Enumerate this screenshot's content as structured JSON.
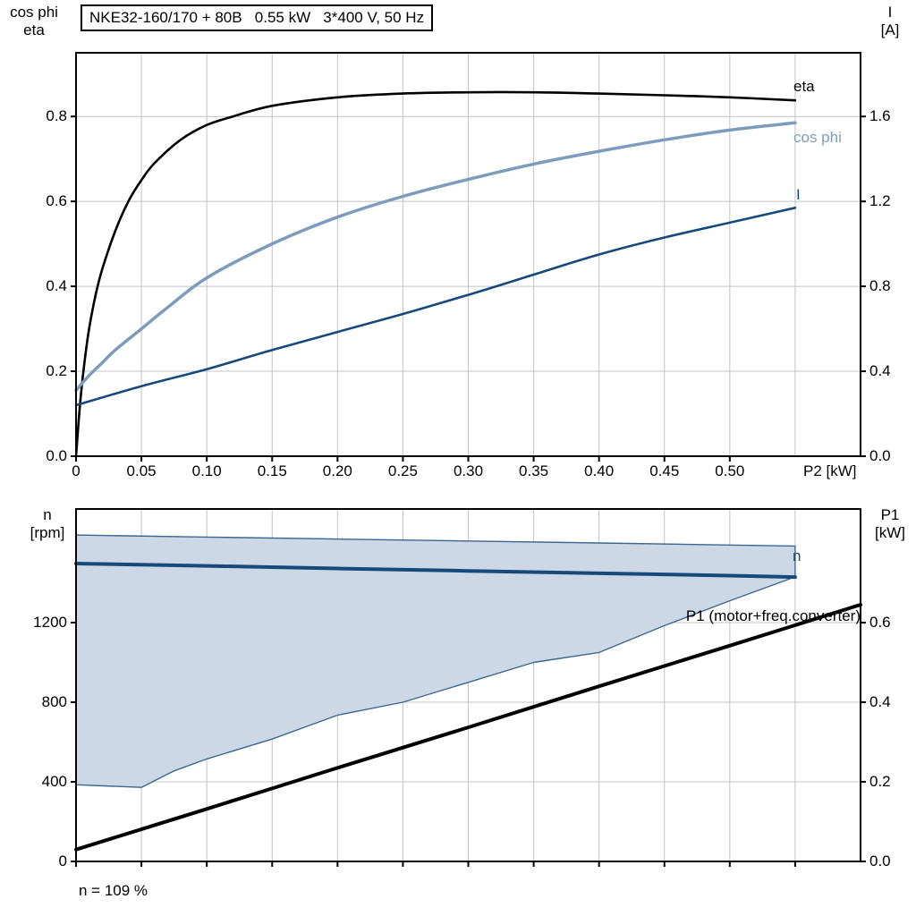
{
  "title": "NKE32-160/170 + 80B   0.55 kW   3*400 V, 50 Hz",
  "footnote": "n = 109 %",
  "colors": {
    "eta_curve": "#000000",
    "cos_phi_curve": "#7d9cbb",
    "current_curve": "#17497b",
    "speed_curve": "#17497b",
    "p1_curve": "#000000",
    "region_fill": "#ccd8e5",
    "region_border": "#3c6690",
    "grid": "#c4c4c4",
    "axis": "#000000",
    "text": "#000000"
  },
  "chart_data": [
    {
      "type": "line",
      "title": "NKE32-160/170 + 80B   0.55 kW   3*400 V, 50 Hz",
      "x_axis": {
        "label": "P2 [kW]",
        "min": 0,
        "max": 0.6,
        "ticks": [
          0,
          0.05,
          0.1,
          0.15,
          0.2,
          0.25,
          0.3,
          0.35,
          0.4,
          0.45,
          0.5
        ],
        "tick_labels": [
          "0",
          "0.05",
          "0.10",
          "0.15",
          "0.20",
          "0.25",
          "0.30",
          "0.35",
          "0.40",
          "0.45",
          "0.50"
        ],
        "grid_ticks": [
          0.05,
          0.1,
          0.15,
          0.2,
          0.25,
          0.3,
          0.35,
          0.4,
          0.45,
          0.5,
          0.55
        ]
      },
      "left_axis": {
        "label_lines": [
          "cos phi",
          "eta"
        ],
        "min": 0,
        "max": 0.95,
        "ticks": [
          0,
          0.2,
          0.4,
          0.6,
          0.8
        ],
        "tick_labels": [
          "0.0",
          "0.2",
          "0.4",
          "0.6",
          "0.8"
        ]
      },
      "right_axis": {
        "label_lines": [
          "I",
          "[A]"
        ],
        "min": 0,
        "max": 1.9,
        "ticks": [
          0,
          0.4,
          0.8,
          1.2,
          1.6
        ],
        "tick_labels": [
          "0.0",
          "0.4",
          "0.8",
          "1.2",
          "1.6"
        ]
      },
      "series": [
        {
          "name": "eta",
          "label": "eta",
          "axis": "left",
          "color": "#000000",
          "width": 2.6,
          "x": [
            0,
            0.003,
            0.006,
            0.01,
            0.015,
            0.02,
            0.03,
            0.04,
            0.05,
            0.06,
            0.08,
            0.1,
            0.12,
            0.15,
            0.2,
            0.25,
            0.3,
            0.35,
            0.4,
            0.45,
            0.5,
            0.55
          ],
          "y": [
            0,
            0.12,
            0.21,
            0.3,
            0.38,
            0.44,
            0.53,
            0.6,
            0.65,
            0.69,
            0.745,
            0.78,
            0.8,
            0.825,
            0.845,
            0.854,
            0.857,
            0.857,
            0.854,
            0.85,
            0.845,
            0.838
          ]
        },
        {
          "name": "cos phi",
          "label": "cos phi",
          "axis": "left",
          "color": "#7d9cbb",
          "width": 3.5,
          "x": [
            0,
            0.01,
            0.02,
            0.03,
            0.05,
            0.07,
            0.1,
            0.15,
            0.2,
            0.25,
            0.3,
            0.35,
            0.4,
            0.45,
            0.5,
            0.55
          ],
          "y": [
            0.155,
            0.19,
            0.22,
            0.25,
            0.3,
            0.35,
            0.42,
            0.5,
            0.563,
            0.612,
            0.652,
            0.688,
            0.718,
            0.745,
            0.768,
            0.785
          ]
        },
        {
          "name": "I",
          "label": "I",
          "axis": "right",
          "color": "#17497b",
          "width": 2.6,
          "x": [
            0,
            0.05,
            0.1,
            0.15,
            0.2,
            0.25,
            0.3,
            0.35,
            0.4,
            0.45,
            0.5,
            0.55
          ],
          "y": [
            0.24,
            0.33,
            0.41,
            0.5,
            0.585,
            0.67,
            0.76,
            0.855,
            0.95,
            1.03,
            1.1,
            1.17
          ]
        }
      ]
    },
    {
      "type": "line",
      "x_axis": {
        "label": "",
        "min": 0,
        "max": 0.6,
        "ticks": [
          0,
          0.05,
          0.1,
          0.15,
          0.2,
          0.25,
          0.3,
          0.35,
          0.4,
          0.45,
          0.5,
          0.55
        ],
        "tick_labels": [
          "",
          "",
          "",
          "",
          "",
          "",
          "",
          "",
          "",
          "",
          "",
          ""
        ],
        "grid_ticks": [
          0.05,
          0.1,
          0.15,
          0.2,
          0.25,
          0.3,
          0.35,
          0.4,
          0.45,
          0.5,
          0.55
        ]
      },
      "left_axis": {
        "label_lines": [
          "n",
          "[rpm]"
        ],
        "min": 0,
        "max": 1771,
        "ticks": [
          0,
          400,
          800,
          1200
        ],
        "tick_labels": [
          "0",
          "400",
          "800",
          "1200"
        ]
      },
      "right_axis": {
        "label_lines": [
          "P1",
          "[kW]"
        ],
        "min": 0,
        "max": 0.8855,
        "ticks": [
          0,
          0.2,
          0.4,
          0.6
        ],
        "tick_labels": [
          "0.0",
          "0.2",
          "0.4",
          "0.6"
        ]
      },
      "region": {
        "name": "speed-control-range",
        "fill": "#ccd8e5",
        "border": "#3c6690",
        "axis": "left",
        "upper_x": [
          0,
          0.1,
          0.2,
          0.3,
          0.4,
          0.5,
          0.55
        ],
        "upper_y": [
          1640,
          1630,
          1620,
          1610,
          1600,
          1590,
          1585
        ],
        "lower_x": [
          0,
          0.05,
          0.075,
          0.1,
          0.15,
          0.2,
          0.25,
          0.3,
          0.35,
          0.4,
          0.45,
          0.5,
          0.55
        ],
        "lower_y": [
          385,
          372,
          455,
          515,
          615,
          735,
          800,
          900,
          1000,
          1050,
          1185,
          1310,
          1430
        ]
      },
      "series": [
        {
          "name": "n",
          "label": "n",
          "axis": "left",
          "color": "#17497b",
          "width": 4,
          "x": [
            0,
            0.1,
            0.2,
            0.3,
            0.4,
            0.5,
            0.55
          ],
          "y": [
            1497,
            1485,
            1472,
            1460,
            1448,
            1436,
            1429
          ]
        },
        {
          "name": "P1",
          "label": "P1 (motor+freq.converter)",
          "axis": "right",
          "color": "#000000",
          "width": 4,
          "x": [
            0,
            0.1,
            0.2,
            0.3,
            0.4,
            0.5,
            0.6
          ],
          "y": [
            0.03,
            0.132,
            0.235,
            0.337,
            0.44,
            0.542,
            0.645
          ]
        }
      ],
      "footnote": "n = 109 %"
    }
  ]
}
